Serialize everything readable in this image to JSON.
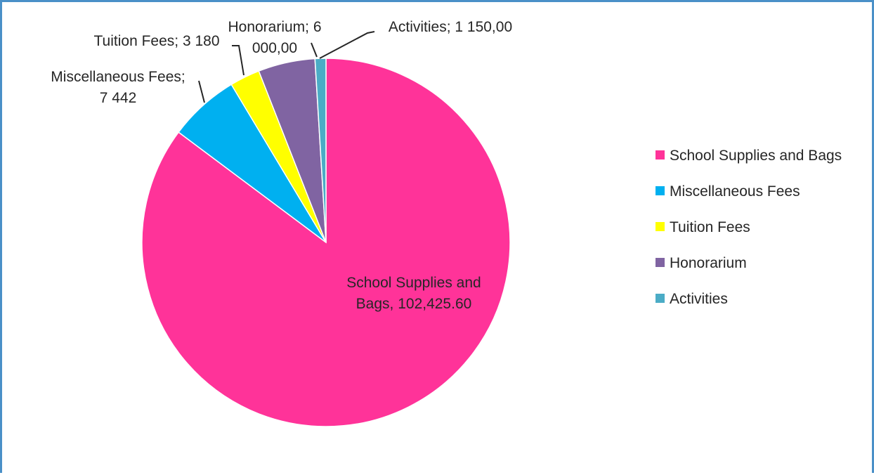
{
  "chart_data": {
    "type": "pie",
    "title": "",
    "slices": [
      {
        "name": "School Supplies and Bags",
        "value": 102425.6,
        "label_lines": [
          "School Supplies and",
          "Bags, 102,425.60"
        ],
        "color": "#ff3399"
      },
      {
        "name": "Miscellaneous Fees",
        "value": 7442,
        "label_lines": [
          "Miscellaneous Fees;",
          "7 442"
        ],
        "color": "#00b0f0"
      },
      {
        "name": "Tuition Fees",
        "value": 3180,
        "label_lines": [
          "Tuition Fees; 3 180"
        ],
        "color": "#ffff00"
      },
      {
        "name": "Honorarium",
        "value": 6000,
        "label_lines": [
          "Honorarium; 6",
          "000,00"
        ],
        "color": "#8064a2"
      },
      {
        "name": "Activities",
        "value": 1150,
        "label_lines": [
          "Activities; 1 150,00"
        ],
        "color": "#4bacc6"
      }
    ],
    "legend": {
      "placement": "right",
      "entries": [
        "School Supplies and Bags",
        "Miscellaneous Fees",
        "Tuition Fees",
        "Honorarium",
        "Activities"
      ]
    }
  }
}
